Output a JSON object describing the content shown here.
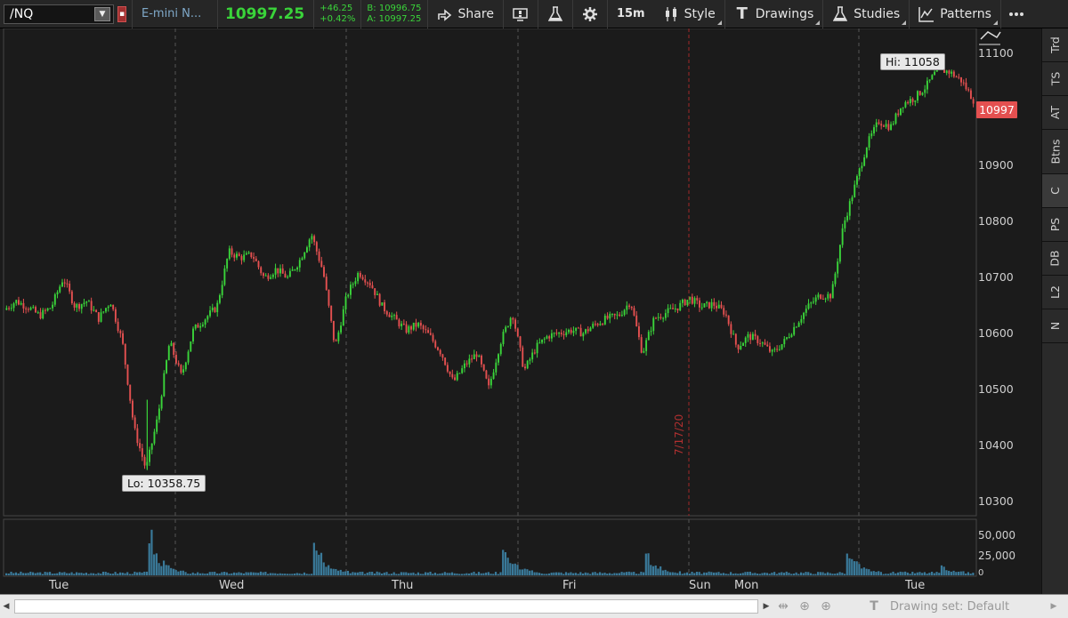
{
  "toolbar": {
    "symbol": "/NQ",
    "description": "E-mini N...",
    "last_price": "10997.25",
    "net_change": "+46.25",
    "pct_change": "+0.42%",
    "bid": "B: 10996.75",
    "ask": "A: 10997.25",
    "share_label": "Share",
    "timeframe_label": "15m",
    "style_label": "Style",
    "drawings_label": "Drawings",
    "studies_label": "Studies",
    "patterns_label": "Patterns",
    "colors": {
      "up": "#3ad43a",
      "down": "#e45050",
      "accent": "#7fa8c8"
    }
  },
  "chart": {
    "hi_label": "Hi: 11058",
    "lo_label": "Lo: 10358.75",
    "last_badge": "10997",
    "date_marker": "7/17/20",
    "price_ticks": [
      "11100",
      "10900",
      "10800",
      "10700",
      "10600",
      "10500",
      "10400",
      "10300"
    ],
    "volume_ticks": [
      "50,000",
      "25,000",
      "0"
    ],
    "x_ticks": [
      "Tue",
      "Wed",
      "Thu",
      "Fri",
      "Sun",
      "Mon",
      "Tue"
    ]
  },
  "chart_data": {
    "type": "candlestick",
    "ylim": [
      10280,
      11120
    ],
    "y_ticks": [
      10300,
      10400,
      10500,
      10600,
      10700,
      10800,
      10900,
      11000,
      11100
    ],
    "hi": 11058,
    "lo": 10358.75,
    "last": 10997.25,
    "x_labels": [
      "Tue",
      "Wed",
      "Thu",
      "Fri",
      "Sun",
      "Mon",
      "Tue"
    ],
    "price_path": [
      {
        "x": 0,
        "y": 10635
      },
      {
        "x": 1,
        "y": 10650
      },
      {
        "x": 2,
        "y": 10640
      },
      {
        "x": 3,
        "y": 10625
      },
      {
        "x": 4,
        "y": 10640
      },
      {
        "x": 5,
        "y": 10690
      },
      {
        "x": 6,
        "y": 10640
      },
      {
        "x": 7,
        "y": 10650
      },
      {
        "x": 8,
        "y": 10620
      },
      {
        "x": 9,
        "y": 10650
      },
      {
        "x": 10,
        "y": 10580
      },
      {
        "x": 11,
        "y": 10430
      },
      {
        "x": 12,
        "y": 10360
      },
      {
        "x": 13,
        "y": 10450
      },
      {
        "x": 14,
        "y": 10580
      },
      {
        "x": 15,
        "y": 10520
      },
      {
        "x": 16,
        "y": 10600
      },
      {
        "x": 17,
        "y": 10620
      },
      {
        "x": 18,
        "y": 10640
      },
      {
        "x": 19,
        "y": 10735
      },
      {
        "x": 20,
        "y": 10725
      },
      {
        "x": 21,
        "y": 10730
      },
      {
        "x": 22,
        "y": 10690
      },
      {
        "x": 23,
        "y": 10705
      },
      {
        "x": 24,
        "y": 10690
      },
      {
        "x": 25,
        "y": 10720
      },
      {
        "x": 26,
        "y": 10765
      },
      {
        "x": 27,
        "y": 10700
      },
      {
        "x": 28,
        "y": 10570
      },
      {
        "x": 29,
        "y": 10660
      },
      {
        "x": 30,
        "y": 10700
      },
      {
        "x": 31,
        "y": 10680
      },
      {
        "x": 32,
        "y": 10640
      },
      {
        "x": 33,
        "y": 10620
      },
      {
        "x": 34,
        "y": 10600
      },
      {
        "x": 35,
        "y": 10610
      },
      {
        "x": 36,
        "y": 10590
      },
      {
        "x": 37,
        "y": 10560
      },
      {
        "x": 38,
        "y": 10510
      },
      {
        "x": 39,
        "y": 10540
      },
      {
        "x": 40,
        "y": 10560
      },
      {
        "x": 41,
        "y": 10500
      },
      {
        "x": 42,
        "y": 10580
      },
      {
        "x": 43,
        "y": 10630
      },
      {
        "x": 44,
        "y": 10530
      },
      {
        "x": 45,
        "y": 10570
      },
      {
        "x": 46,
        "y": 10590
      },
      {
        "x": 47,
        "y": 10595
      },
      {
        "x": 48,
        "y": 10600
      },
      {
        "x": 49,
        "y": 10595
      },
      {
        "x": 50,
        "y": 10610
      },
      {
        "x": 51,
        "y": 10620
      },
      {
        "x": 52,
        "y": 10625
      },
      {
        "x": 53,
        "y": 10650
      },
      {
        "x": 54,
        "y": 10560
      },
      {
        "x": 55,
        "y": 10620
      },
      {
        "x": 56,
        "y": 10630
      },
      {
        "x": 57,
        "y": 10640
      },
      {
        "x": 58,
        "y": 10655
      },
      {
        "x": 59,
        "y": 10640
      },
      {
        "x": 60,
        "y": 10645
      },
      {
        "x": 61,
        "y": 10630
      },
      {
        "x": 62,
        "y": 10570
      },
      {
        "x": 63,
        "y": 10590
      },
      {
        "x": 64,
        "y": 10580
      },
      {
        "x": 65,
        "y": 10560
      },
      {
        "x": 66,
        "y": 10580
      },
      {
        "x": 67,
        "y": 10610
      },
      {
        "x": 68,
        "y": 10640
      },
      {
        "x": 69,
        "y": 10660
      },
      {
        "x": 70,
        "y": 10660
      },
      {
        "x": 71,
        "y": 10780
      },
      {
        "x": 72,
        "y": 10850
      },
      {
        "x": 73,
        "y": 10920
      },
      {
        "x": 74,
        "y": 10960
      },
      {
        "x": 75,
        "y": 10950
      },
      {
        "x": 76,
        "y": 10990
      },
      {
        "x": 77,
        "y": 11000
      },
      {
        "x": 78,
        "y": 11020
      },
      {
        "x": 79,
        "y": 11050
      },
      {
        "x": 80,
        "y": 11045
      },
      {
        "x": 81,
        "y": 11030
      },
      {
        "x": 82,
        "y": 10997
      }
    ],
    "volume_peaks": [
      {
        "x": 12,
        "v": 62000
      },
      {
        "x": 26,
        "v": 45000
      },
      {
        "x": 42,
        "v": 40000
      },
      {
        "x": 54,
        "v": 32000
      },
      {
        "x": 71,
        "v": 38000
      },
      {
        "x": 79,
        "v": 8000
      }
    ],
    "volume_ylim": [
      0,
      65000
    ]
  },
  "right_bar": {
    "tabs": [
      "Trd",
      "TS",
      "AT",
      "Btns",
      "C",
      "PS",
      "DB",
      "L2",
      "N"
    ]
  },
  "bottom_bar": {
    "drawing_set": "Drawing set: Default"
  }
}
